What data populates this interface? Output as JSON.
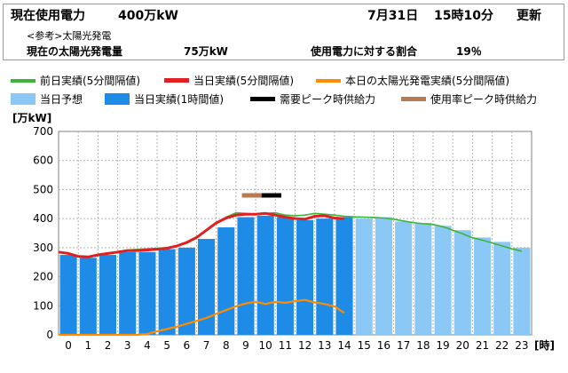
{
  "header": {
    "current_label": "現在使用電力",
    "current_value": "400万kW",
    "date": "7月31日",
    "time": "15時10分",
    "updated": "更新",
    "reference": "<参考>太陽光発電",
    "solar_label": "現在の太陽光発電量",
    "solar_value": "75万kW",
    "ratio_label": "使用電力に対する割合",
    "ratio_value": "19％"
  },
  "legend": {
    "prev_day": "前日実績(5分間隔値)",
    "today_5min": "当日実績(5分間隔値)",
    "solar": "本日の太陽光発電実績(5分間隔値)",
    "forecast": "当日予想",
    "today_hourly": "当日実績(1時間値)",
    "peak_demand": "需要ピーク時供給力",
    "peak_usage": "使用率ピーク時供給力"
  },
  "colors": {
    "prev_day": "#3cb43c",
    "today_5min": "#e02020",
    "solar": "#ff8c00",
    "forecast": "#8cc8f5",
    "today_hourly": "#1e8ce6",
    "peak_demand": "#000000",
    "peak_usage": "#b87a50",
    "grid": "#b4b4b4"
  },
  "chart_data": {
    "type": "bar",
    "ylabel": "[万kW]",
    "xlabel": "[時]",
    "ylim": [
      0,
      700
    ],
    "yticks": [
      0,
      100,
      200,
      300,
      400,
      500,
      600,
      700
    ],
    "x": [
      0,
      1,
      2,
      3,
      4,
      5,
      6,
      7,
      8,
      9,
      10,
      11,
      12,
      13,
      14,
      15,
      16,
      17,
      18,
      19,
      20,
      21,
      22,
      23
    ],
    "today_hourly": [
      275,
      265,
      275,
      285,
      285,
      295,
      300,
      330,
      370,
      405,
      410,
      405,
      395,
      400,
      405,
      null,
      null,
      null,
      null,
      null,
      null,
      null,
      null,
      null
    ],
    "forecast": [
      null,
      null,
      null,
      null,
      null,
      null,
      null,
      null,
      null,
      null,
      null,
      null,
      null,
      null,
      null,
      400,
      405,
      390,
      385,
      375,
      360,
      335,
      320,
      300
    ],
    "prev_day": [
      [
        0,
        285
      ],
      [
        0.5,
        280
      ],
      [
        1,
        272
      ],
      [
        1.5,
        268
      ],
      [
        2,
        272
      ],
      [
        2.5,
        280
      ],
      [
        3,
        286
      ],
      [
        3.5,
        292
      ],
      [
        4,
        294
      ],
      [
        4.5,
        296
      ],
      [
        5,
        298
      ],
      [
        5.5,
        300
      ],
      [
        6,
        305
      ],
      [
        6.5,
        315
      ],
      [
        7,
        335
      ],
      [
        7.5,
        360
      ],
      [
        8,
        385
      ],
      [
        8.5,
        405
      ],
      [
        9,
        420
      ],
      [
        9.5,
        418
      ],
      [
        10,
        415
      ],
      [
        10.5,
        418
      ],
      [
        11,
        420
      ],
      [
        11.5,
        412
      ],
      [
        12,
        410
      ],
      [
        12.5,
        412
      ],
      [
        13,
        418
      ],
      [
        13.5,
        415
      ],
      [
        14,
        412
      ],
      [
        14.5,
        408
      ],
      [
        15,
        406
      ],
      [
        15.5,
        405
      ],
      [
        16,
        404
      ],
      [
        16.5,
        402
      ],
      [
        17,
        398
      ],
      [
        17.5,
        392
      ],
      [
        18,
        386
      ],
      [
        18.5,
        382
      ],
      [
        19,
        380
      ],
      [
        19.5,
        372
      ],
      [
        20,
        360
      ],
      [
        20.5,
        348
      ],
      [
        21,
        334
      ],
      [
        21.5,
        326
      ],
      [
        22,
        316
      ],
      [
        22.5,
        306
      ],
      [
        23,
        296
      ],
      [
        23.5,
        288
      ]
    ],
    "today_5min": [
      [
        0,
        285
      ],
      [
        0.5,
        280
      ],
      [
        1,
        270
      ],
      [
        1.5,
        268
      ],
      [
        2,
        275
      ],
      [
        2.5,
        280
      ],
      [
        3,
        285
      ],
      [
        3.5,
        290
      ],
      [
        4,
        290
      ],
      [
        4.5,
        292
      ],
      [
        5,
        294
      ],
      [
        5.5,
        298
      ],
      [
        6,
        306
      ],
      [
        6.5,
        318
      ],
      [
        7,
        335
      ],
      [
        7.5,
        360
      ],
      [
        8,
        385
      ],
      [
        8.5,
        402
      ],
      [
        9,
        412
      ],
      [
        9.5,
        415
      ],
      [
        10,
        415
      ],
      [
        10.5,
        418
      ],
      [
        11,
        412
      ],
      [
        11.5,
        405
      ],
      [
        12,
        400
      ],
      [
        12.5,
        398
      ],
      [
        13,
        408
      ],
      [
        13.5,
        410
      ],
      [
        14,
        402
      ],
      [
        14.5,
        400
      ]
    ],
    "solar": [
      [
        0,
        0
      ],
      [
        1,
        0
      ],
      [
        2,
        0
      ],
      [
        3,
        0
      ],
      [
        4,
        0
      ],
      [
        4.5,
        3
      ],
      [
        5,
        12
      ],
      [
        5.5,
        20
      ],
      [
        6,
        28
      ],
      [
        6.5,
        38
      ],
      [
        7,
        48
      ],
      [
        7.5,
        58
      ],
      [
        8,
        72
      ],
      [
        8.5,
        85
      ],
      [
        9,
        98
      ],
      [
        9.5,
        108
      ],
      [
        10,
        114
      ],
      [
        10.5,
        106
      ],
      [
        11,
        114
      ],
      [
        11.5,
        110
      ],
      [
        12,
        116
      ],
      [
        12.5,
        120
      ],
      [
        13,
        112
      ],
      [
        13.5,
        106
      ],
      [
        14,
        98
      ],
      [
        14.5,
        75
      ]
    ],
    "peak_demand": {
      "x_start": 10.3,
      "x_end": 11.3,
      "value": 480
    },
    "peak_usage": {
      "x_start": 9.3,
      "x_end": 10.3,
      "value": 480
    }
  }
}
